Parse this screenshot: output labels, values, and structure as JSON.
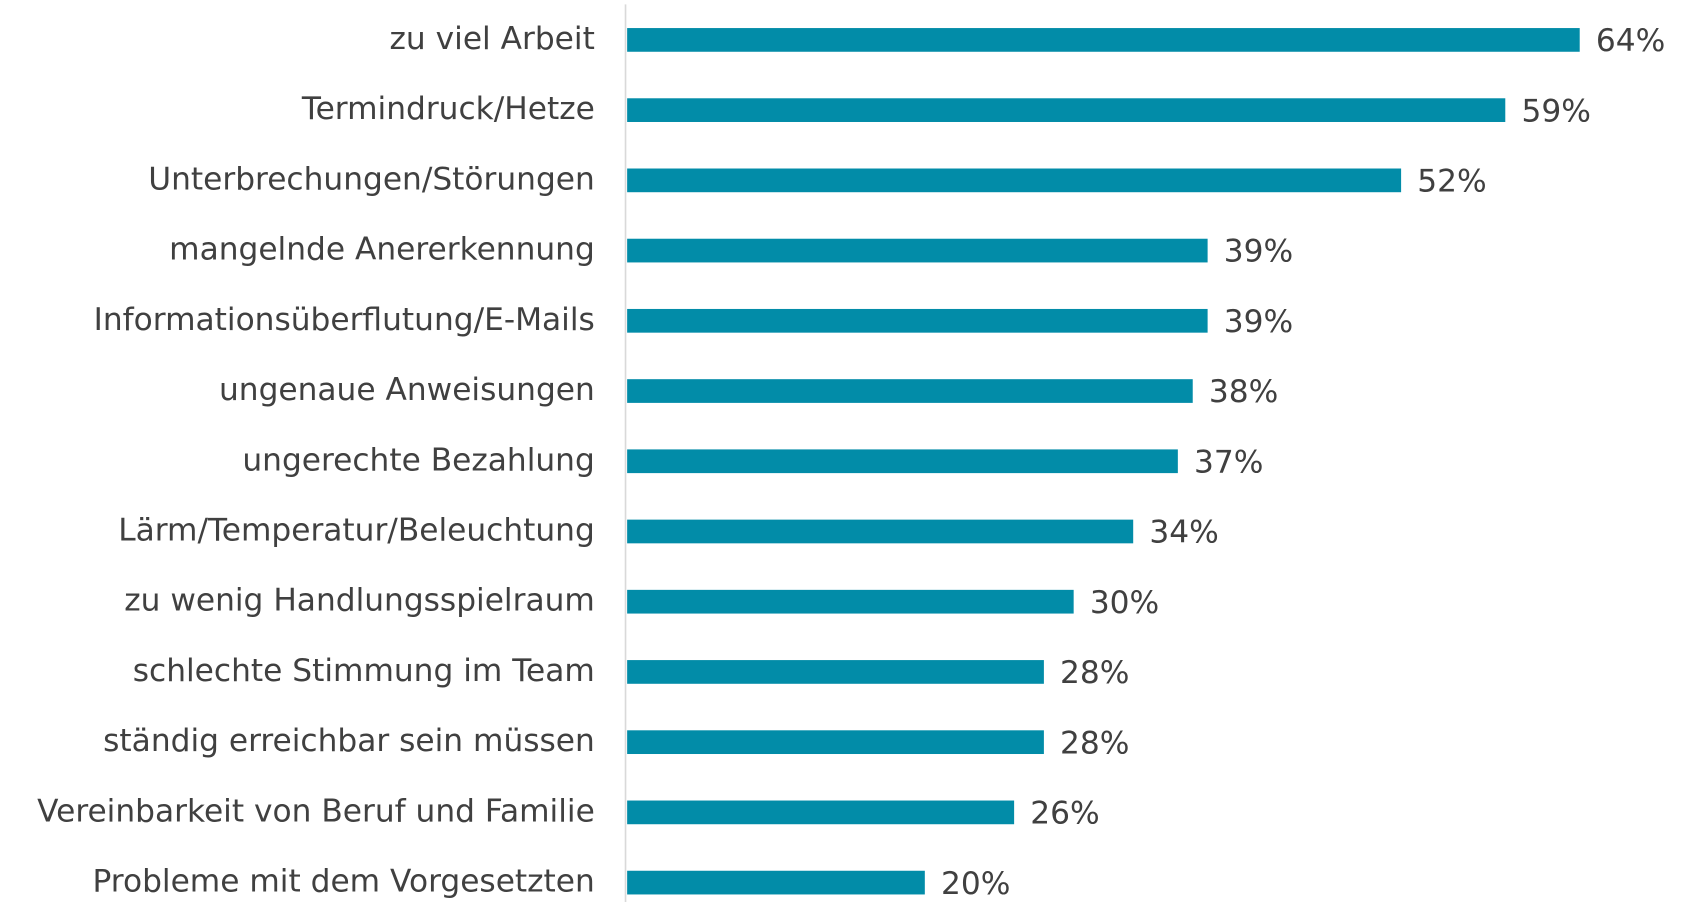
{
  "chart_data": {
    "type": "barh",
    "categories": [
      "zu viel Arbeit",
      "Termindruck/Hetze",
      "Unterbrechungen/Störungen",
      "mangelnde Anererkennung",
      "Informationsüberflutung/E-Mails",
      "ungenaue Anweisungen",
      "ungerechte Bezahlung",
      "Lärm/Temperatur/Beleuchtung",
      "zu wenig Handlungsspielraum",
      "schlechte Stimmung im Team",
      "ständig erreichbar sein müssen",
      "Vereinbarkeit von Beruf und Familie",
      "Probleme mit dem Vorgesetzten"
    ],
    "values": [
      64,
      59,
      52,
      39,
      39,
      38,
      37,
      34,
      30,
      28,
      28,
      26,
      20
    ],
    "value_labels": [
      "64%",
      "59%",
      "52%",
      "39%",
      "39%",
      "38%",
      "37%",
      "34%",
      "30%",
      "28%",
      "28%",
      "26%",
      "20%"
    ],
    "color": "#028ca8"
  }
}
